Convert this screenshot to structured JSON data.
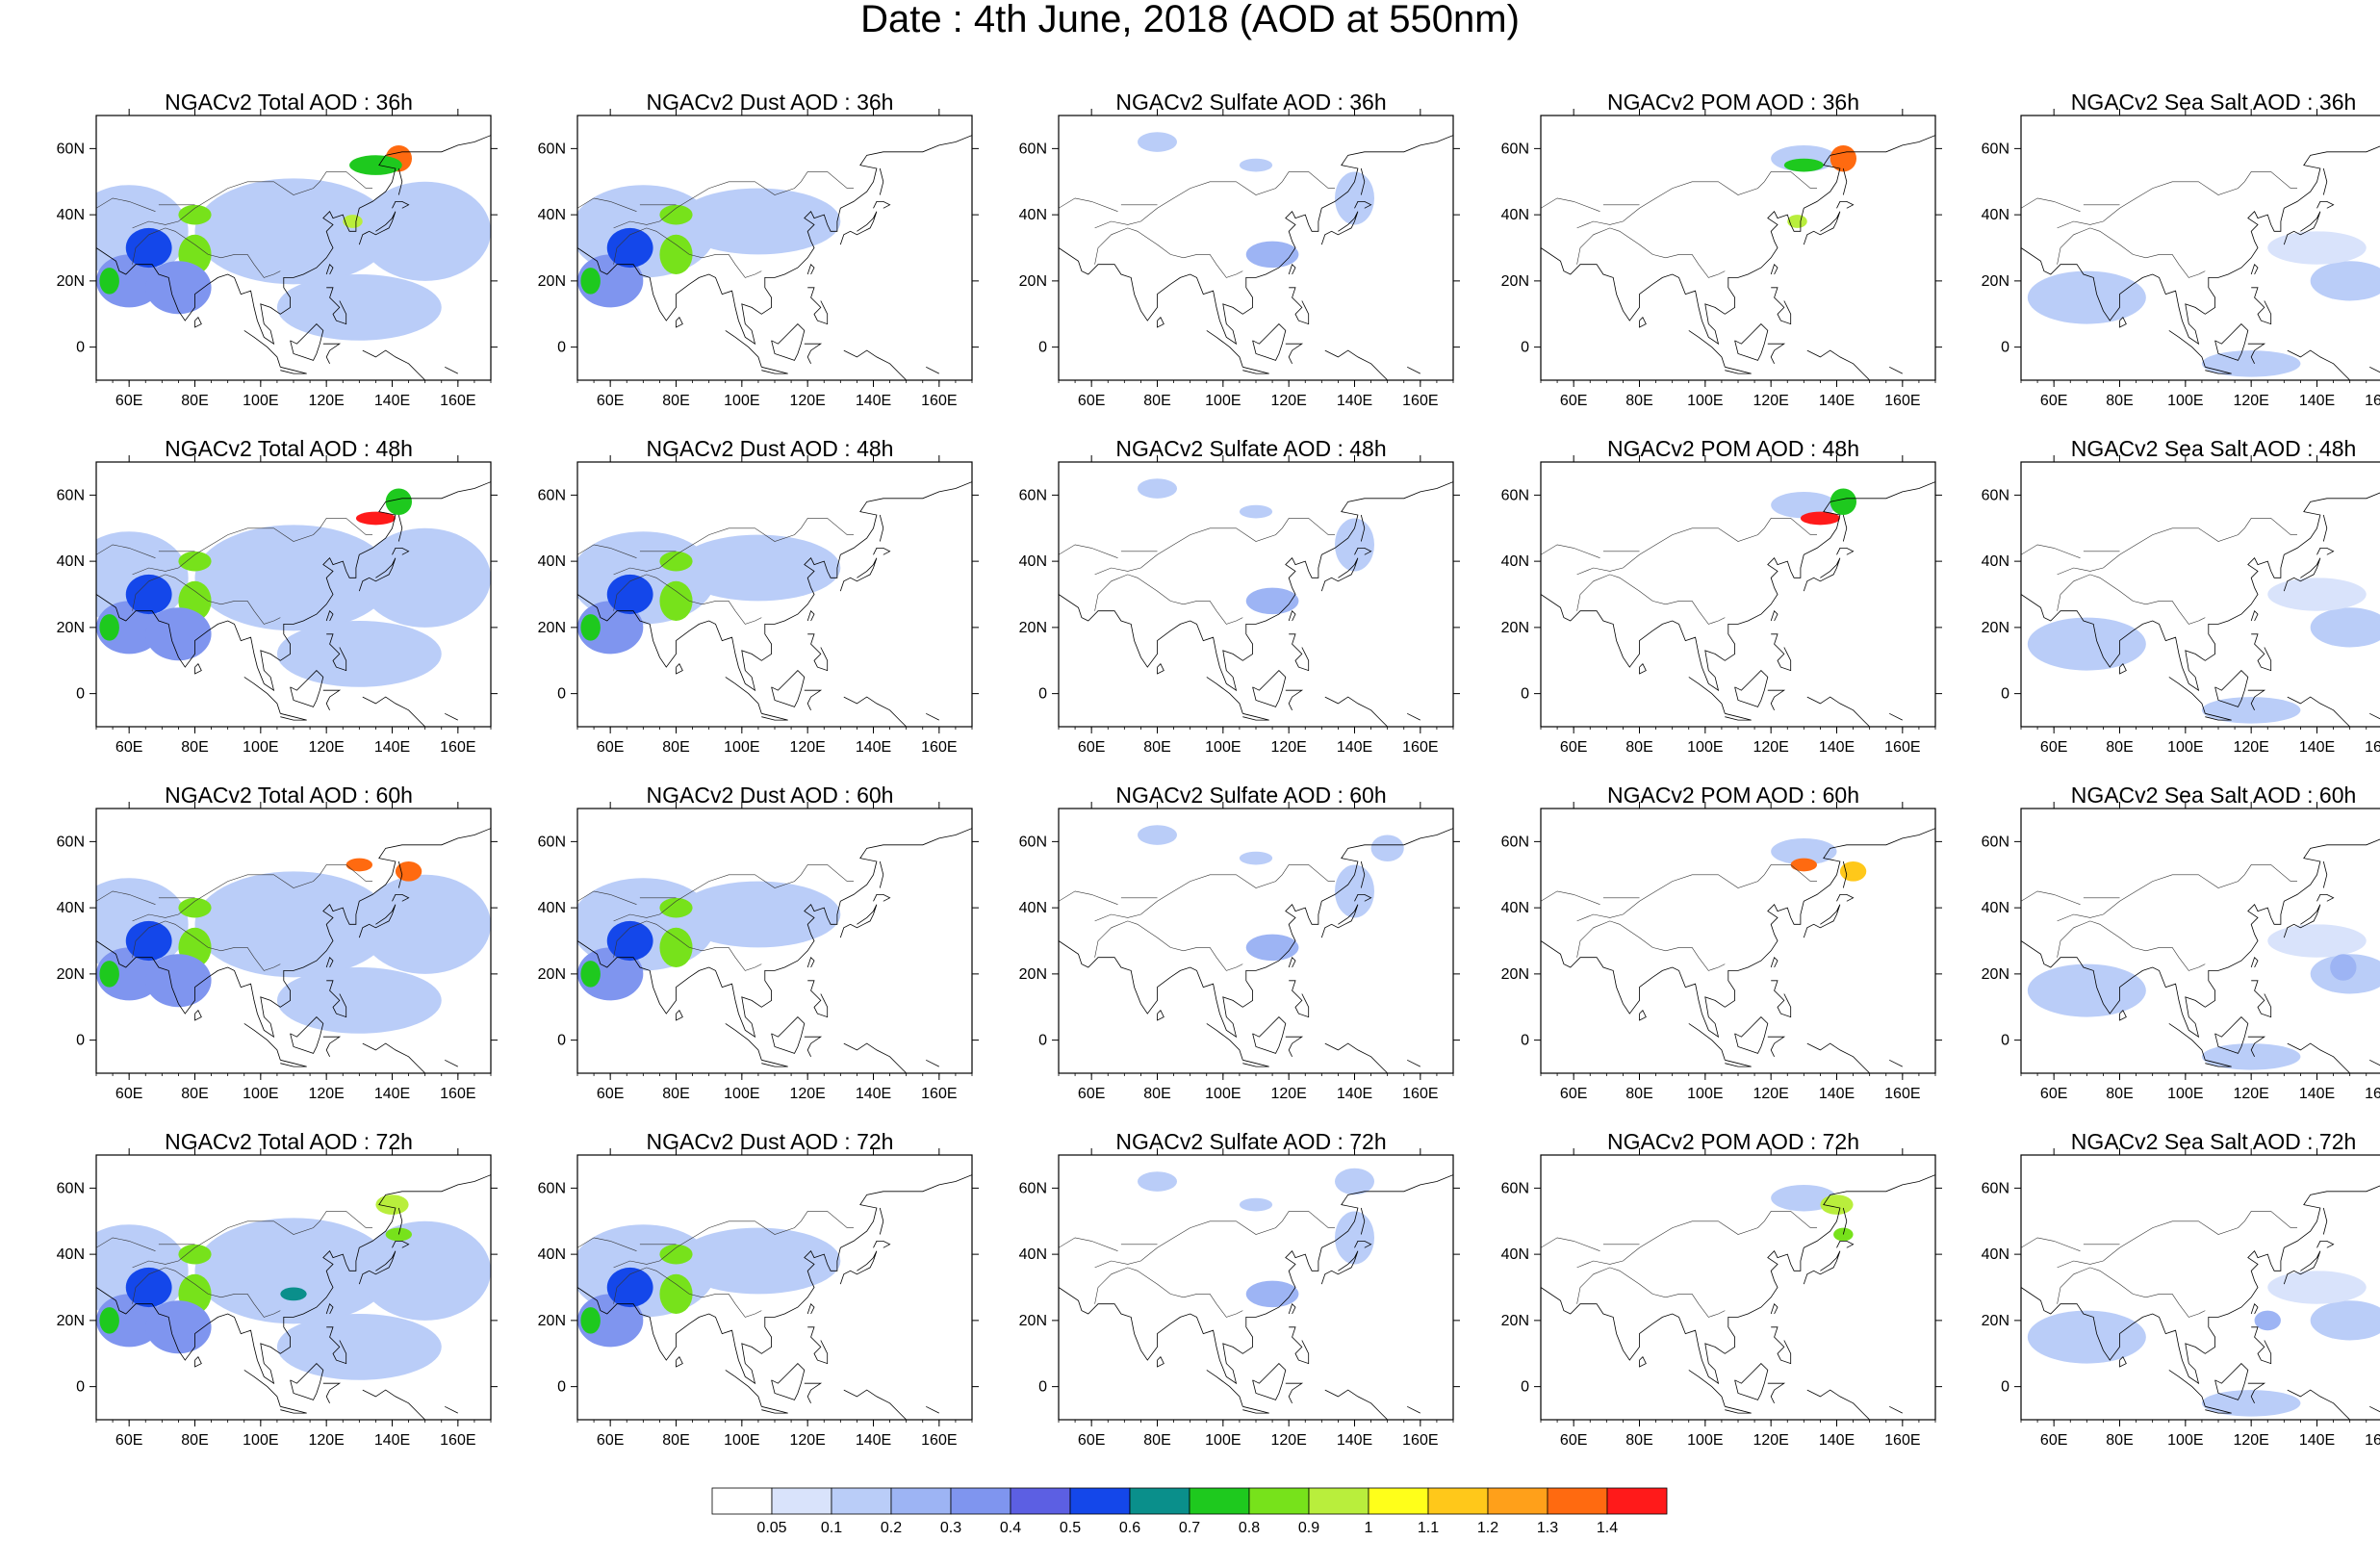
{
  "title": "Date : 4th June, 2018 (AOD at 550nm)",
  "map": {
    "x_ticks": [
      "60E",
      "80E",
      "100E",
      "120E",
      "140E",
      "160E"
    ],
    "x_tick_values": [
      60,
      80,
      100,
      120,
      140,
      160
    ],
    "y_ticks": [
      "60N",
      "40N",
      "20N",
      "0"
    ],
    "y_tick_values": [
      60,
      40,
      20,
      0
    ],
    "lon_range": [
      50,
      170
    ],
    "lat_range": [
      -10,
      70
    ]
  },
  "panels": [
    {
      "title": "NGACv2 Total AOD : 36h",
      "species": "total",
      "hour": 36
    },
    {
      "title": "NGACv2 Dust AOD : 36h",
      "species": "dust",
      "hour": 36
    },
    {
      "title": "NGACv2 Sulfate AOD : 36h",
      "species": "sulfate",
      "hour": 36
    },
    {
      "title": "NGACv2 POM AOD : 36h",
      "species": "pom",
      "hour": 36
    },
    {
      "title": "NGACv2 Sea Salt AOD : 36h",
      "species": "seasalt",
      "hour": 36
    },
    {
      "title": "NGACv2 Total AOD : 48h",
      "species": "total",
      "hour": 48
    },
    {
      "title": "NGACv2 Dust AOD : 48h",
      "species": "dust",
      "hour": 48
    },
    {
      "title": "NGACv2 Sulfate AOD : 48h",
      "species": "sulfate",
      "hour": 48
    },
    {
      "title": "NGACv2 POM AOD : 48h",
      "species": "pom",
      "hour": 48
    },
    {
      "title": "NGACv2 Sea Salt AOD : 48h",
      "species": "seasalt",
      "hour": 48
    },
    {
      "title": "NGACv2 Total AOD : 60h",
      "species": "total",
      "hour": 60
    },
    {
      "title": "NGACv2 Dust AOD : 60h",
      "species": "dust",
      "hour": 60
    },
    {
      "title": "NGACv2 Sulfate AOD : 60h",
      "species": "sulfate",
      "hour": 60
    },
    {
      "title": "NGACv2 POM AOD : 60h",
      "species": "pom",
      "hour": 60
    },
    {
      "title": "NGACv2 Sea Salt AOD : 60h",
      "species": "seasalt",
      "hour": 60
    },
    {
      "title": "NGACv2 Total AOD : 72h",
      "species": "total",
      "hour": 72
    },
    {
      "title": "NGACv2 Dust AOD : 72h",
      "species": "dust",
      "hour": 72
    },
    {
      "title": "NGACv2 Sulfate AOD : 72h",
      "species": "sulfate",
      "hour": 72
    },
    {
      "title": "NGACv2 POM AOD : 72h",
      "species": "pom",
      "hour": 72
    },
    {
      "title": "NGACv2 Sea Salt  AOD : 72h",
      "species": "seasalt",
      "hour": 72
    }
  ],
  "colorbar": {
    "labels": [
      "0.05",
      "0.1",
      "0.2",
      "0.3",
      "0.4",
      "0.5",
      "0.6",
      "0.7",
      "0.8",
      "0.9",
      "1",
      "1.1",
      "1.2",
      "1.3",
      "1.4"
    ],
    "colors": [
      "#ffffff",
      "#d9e3fb",
      "#bacdf8",
      "#9db4f4",
      "#7f95ef",
      "#5c5fe3",
      "#1447ea",
      "#0a8f8b",
      "#1ec91e",
      "#77e21b",
      "#b9ee3c",
      "#ffff1a",
      "#ffc81a",
      "#ffa01a",
      "#ff6a10",
      "#ff1a1a"
    ]
  },
  "chart_data": {
    "type": "heatmap",
    "variable": "AOD at 550nm",
    "date": "4th June, 2018",
    "species": [
      "Total",
      "Dust",
      "Sulfate",
      "POM",
      "Sea Salt"
    ],
    "forecast_hours": [
      36,
      48,
      60,
      72
    ],
    "lon_range": [
      50,
      170
    ],
    "lat_range": [
      -10,
      70
    ],
    "colorbar_levels": [
      0.05,
      0.1,
      0.2,
      0.3,
      0.4,
      0.5,
      0.6,
      0.7,
      0.8,
      0.9,
      1,
      1.1,
      1.2,
      1.3,
      1.4
    ],
    "features": {
      "total": [
        {
          "lon": 65,
          "lat": 30,
          "aod": 0.5,
          "hours": [
            36,
            48,
            60,
            72
          ]
        },
        {
          "lon": 80,
          "lat": 28,
          "aod": 0.85,
          "hours": [
            36,
            48,
            60,
            72
          ]
        },
        {
          "lon": 53,
          "lat": 20,
          "aod": 0.7,
          "hours": [
            36,
            48,
            60,
            72
          ]
        },
        {
          "lon": 80,
          "lat": 40,
          "aod": 0.8,
          "hours": [
            36,
            48,
            60,
            72
          ]
        },
        {
          "lon": 142,
          "lat": 57,
          "aod": 1.3,
          "hours": [
            36
          ]
        },
        {
          "lon": 135,
          "lat": 53,
          "aod": 1.4,
          "hours": [
            48
          ]
        },
        {
          "lon": 145,
          "lat": 51,
          "aod": 1.3,
          "hours": [
            60
          ]
        },
        {
          "lon": 130,
          "lat": 53,
          "aod": 1.3,
          "hours": [
            60
          ]
        },
        {
          "lon": 140,
          "lat": 55,
          "aod": 0.9,
          "hours": [
            72
          ]
        }
      ],
      "dust": [
        {
          "lon": 65,
          "lat": 30,
          "aod": 0.5,
          "hours": [
            36,
            48,
            60,
            72
          ]
        },
        {
          "lon": 80,
          "lat": 28,
          "aod": 0.85,
          "hours": [
            36,
            48,
            60,
            72
          ]
        },
        {
          "lon": 80,
          "lat": 40,
          "aod": 0.8,
          "hours": [
            36,
            48,
            60,
            72
          ]
        }
      ],
      "sulfate": [
        {
          "lon": 115,
          "lat": 28,
          "aod": 0.2,
          "hours": [
            36,
            48,
            60,
            72
          ]
        },
        {
          "lon": 140,
          "lat": 45,
          "aod": 0.15,
          "hours": [
            36,
            48,
            60,
            72
          ]
        }
      ],
      "pom": [
        {
          "lon": 140,
          "lat": 57,
          "aod": 1.3,
          "hours": [
            36
          ]
        },
        {
          "lon": 135,
          "lat": 53,
          "aod": 1.4,
          "hours": [
            48
          ]
        },
        {
          "lon": 130,
          "lat": 53,
          "aod": 1.3,
          "hours": [
            60
          ]
        },
        {
          "lon": 145,
          "lat": 51,
          "aod": 1.1,
          "hours": [
            60
          ]
        },
        {
          "lon": 140,
          "lat": 55,
          "aod": 0.9,
          "hours": [
            72
          ]
        }
      ],
      "seasalt": [
        {
          "lon": 70,
          "lat": 15,
          "aod": 0.2,
          "hours": [
            36,
            48,
            60,
            72
          ]
        },
        {
          "lon": 150,
          "lat": 20,
          "aod": 0.15,
          "hours": [
            36,
            48,
            60,
            72
          ]
        }
      ]
    }
  }
}
